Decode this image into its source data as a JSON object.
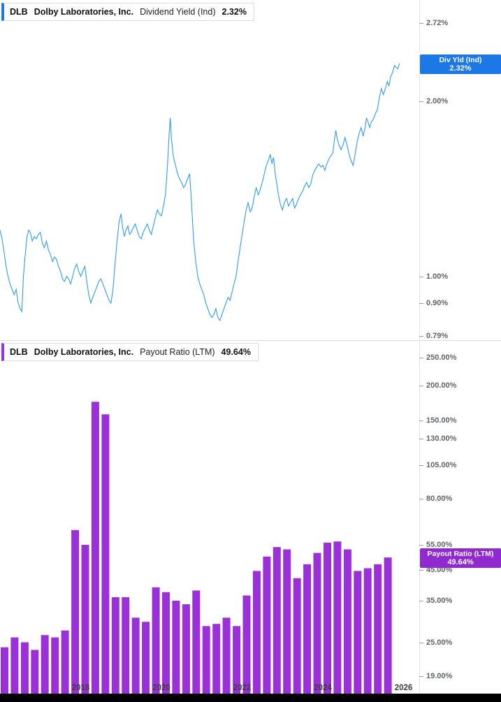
{
  "panels": {
    "yield": {
      "legend": {
        "ticker": "DLB",
        "company": "Dolby Laboratories, Inc.",
        "metric": "Dividend Yield (Ind)",
        "value": "2.32%"
      },
      "badge": {
        "title": "Div Yld (Ind)",
        "value_label": "2.32%",
        "value": 2.32
      }
    },
    "payout": {
      "legend": {
        "ticker": "DLB",
        "company": "Dolby Laboratories, Inc.",
        "metric": "Payout Ratio (LTM)",
        "value": "49.64%"
      },
      "badge": {
        "title": "Payout Ratio (LTM)",
        "value_label": "49.64%",
        "value": 49.64
      }
    }
  },
  "colors": {
    "yield_line": "#2f9cf0",
    "yield_badge": "#1b78e6",
    "payout_bar": "#9b30d9",
    "payout_badge": "#9029d0",
    "axis_text": "#5f6368",
    "divider": "#d8d8d8"
  },
  "x_axis": {
    "year_labels": [
      2018,
      2020,
      2022,
      2024,
      2026
    ],
    "xlim": [
      2016,
      2026.39
    ]
  },
  "chart_data": [
    {
      "type": "line",
      "title": "DLB Dividend Yield (Ind)",
      "unit": "%",
      "scale": "log",
      "color": "#2f9cf0",
      "ylim": [
        0.777,
        2.98
      ],
      "xlim": [
        2016,
        2026.39
      ],
      "yticks": [
        {
          "v": 2.72,
          "label": "2.72%"
        },
        {
          "v": 2.0,
          "label": "2.00%"
        },
        {
          "v": 1.0,
          "label": "1.00%"
        },
        {
          "v": 0.9,
          "label": "0.90%"
        },
        {
          "v": 0.79,
          "label": "0.79%"
        }
      ],
      "points": [
        [
          2016.0,
          1.2
        ],
        [
          2016.05,
          1.16
        ],
        [
          2016.1,
          1.1
        ],
        [
          2016.15,
          1.04
        ],
        [
          2016.2,
          1.0
        ],
        [
          2016.25,
          0.97
        ],
        [
          2016.3,
          0.95
        ],
        [
          2016.35,
          0.93
        ],
        [
          2016.4,
          0.95
        ],
        [
          2016.45,
          0.9
        ],
        [
          2016.5,
          0.88
        ],
        [
          2016.54,
          0.87
        ],
        [
          2016.58,
          1.0
        ],
        [
          2016.62,
          1.08
        ],
        [
          2016.67,
          1.17
        ],
        [
          2016.71,
          1.2
        ],
        [
          2016.75,
          1.19
        ],
        [
          2016.8,
          1.15
        ],
        [
          2016.85,
          1.17
        ],
        [
          2016.9,
          1.16
        ],
        [
          2016.95,
          1.18
        ],
        [
          2017.0,
          1.19
        ],
        [
          2017.05,
          1.14
        ],
        [
          2017.1,
          1.12
        ],
        [
          2017.15,
          1.15
        ],
        [
          2017.2,
          1.11
        ],
        [
          2017.25,
          1.09
        ],
        [
          2017.3,
          1.06
        ],
        [
          2017.35,
          1.08
        ],
        [
          2017.4,
          1.07
        ],
        [
          2017.45,
          1.04
        ],
        [
          2017.5,
          1.02
        ],
        [
          2017.55,
          0.99
        ],
        [
          2017.6,
          0.98
        ],
        [
          2017.65,
          1.0
        ],
        [
          2017.7,
          0.99
        ],
        [
          2017.75,
          0.97
        ],
        [
          2017.8,
          1.0
        ],
        [
          2017.85,
          1.03
        ],
        [
          2017.9,
          1.05
        ],
        [
          2017.95,
          1.02
        ],
        [
          2018.0,
          1.0
        ],
        [
          2018.05,
          1.02
        ],
        [
          2018.1,
          1.04
        ],
        [
          2018.15,
          0.98
        ],
        [
          2018.2,
          0.93
        ],
        [
          2018.25,
          0.9
        ],
        [
          2018.3,
          0.92
        ],
        [
          2018.35,
          0.94
        ],
        [
          2018.4,
          0.96
        ],
        [
          2018.45,
          0.98
        ],
        [
          2018.5,
          0.99
        ],
        [
          2018.55,
          0.97
        ],
        [
          2018.6,
          0.95
        ],
        [
          2018.65,
          0.93
        ],
        [
          2018.7,
          0.91
        ],
        [
          2018.75,
          0.9
        ],
        [
          2018.8,
          0.95
        ],
        [
          2018.85,
          1.05
        ],
        [
          2018.9,
          1.15
        ],
        [
          2018.95,
          1.24
        ],
        [
          2019.0,
          1.28
        ],
        [
          2019.04,
          1.21
        ],
        [
          2019.08,
          1.17
        ],
        [
          2019.12,
          1.2
        ],
        [
          2019.17,
          1.22
        ],
        [
          2019.21,
          1.18
        ],
        [
          2019.25,
          1.19
        ],
        [
          2019.3,
          1.21
        ],
        [
          2019.35,
          1.23
        ],
        [
          2019.4,
          1.2
        ],
        [
          2019.45,
          1.17
        ],
        [
          2019.5,
          1.16
        ],
        [
          2019.55,
          1.19
        ],
        [
          2019.6,
          1.21
        ],
        [
          2019.65,
          1.23
        ],
        [
          2019.7,
          1.2
        ],
        [
          2019.75,
          1.18
        ],
        [
          2019.8,
          1.22
        ],
        [
          2019.85,
          1.26
        ],
        [
          2019.9,
          1.3
        ],
        [
          2019.95,
          1.28
        ],
        [
          2020.0,
          1.27
        ],
        [
          2020.05,
          1.32
        ],
        [
          2020.1,
          1.38
        ],
        [
          2020.15,
          1.55
        ],
        [
          2020.19,
          1.75
        ],
        [
          2020.22,
          1.87
        ],
        [
          2020.25,
          1.72
        ],
        [
          2020.3,
          1.6
        ],
        [
          2020.35,
          1.55
        ],
        [
          2020.4,
          1.5
        ],
        [
          2020.45,
          1.47
        ],
        [
          2020.5,
          1.45
        ],
        [
          2020.55,
          1.42
        ],
        [
          2020.6,
          1.44
        ],
        [
          2020.65,
          1.47
        ],
        [
          2020.7,
          1.5
        ],
        [
          2020.73,
          1.4
        ],
        [
          2020.76,
          1.28
        ],
        [
          2020.8,
          1.15
        ],
        [
          2020.85,
          1.06
        ],
        [
          2020.9,
          1.0
        ],
        [
          2020.95,
          0.97
        ],
        [
          2021.0,
          0.95
        ],
        [
          2021.05,
          0.93
        ],
        [
          2021.1,
          0.9
        ],
        [
          2021.15,
          0.88
        ],
        [
          2021.2,
          0.86
        ],
        [
          2021.25,
          0.85
        ],
        [
          2021.3,
          0.86
        ],
        [
          2021.35,
          0.88
        ],
        [
          2021.4,
          0.85
        ],
        [
          2021.45,
          0.84
        ],
        [
          2021.5,
          0.86
        ],
        [
          2021.55,
          0.88
        ],
        [
          2021.6,
          0.9
        ],
        [
          2021.65,
          0.92
        ],
        [
          2021.7,
          0.91
        ],
        [
          2021.75,
          0.94
        ],
        [
          2021.8,
          0.97
        ],
        [
          2021.85,
          1.0
        ],
        [
          2021.9,
          1.06
        ],
        [
          2021.95,
          1.12
        ],
        [
          2022.0,
          1.18
        ],
        [
          2022.05,
          1.24
        ],
        [
          2022.1,
          1.3
        ],
        [
          2022.15,
          1.34
        ],
        [
          2022.2,
          1.29
        ],
        [
          2022.25,
          1.31
        ],
        [
          2022.3,
          1.37
        ],
        [
          2022.35,
          1.42
        ],
        [
          2022.4,
          1.38
        ],
        [
          2022.45,
          1.41
        ],
        [
          2022.5,
          1.45
        ],
        [
          2022.55,
          1.5
        ],
        [
          2022.6,
          1.55
        ],
        [
          2022.65,
          1.58
        ],
        [
          2022.7,
          1.62
        ],
        [
          2022.74,
          1.56
        ],
        [
          2022.78,
          1.6
        ],
        [
          2022.82,
          1.5
        ],
        [
          2022.86,
          1.44
        ],
        [
          2022.9,
          1.38
        ],
        [
          2022.95,
          1.33
        ],
        [
          2023.0,
          1.3
        ],
        [
          2023.05,
          1.34
        ],
        [
          2023.1,
          1.36
        ],
        [
          2023.15,
          1.32
        ],
        [
          2023.2,
          1.34
        ],
        [
          2023.25,
          1.36
        ],
        [
          2023.3,
          1.31
        ],
        [
          2023.35,
          1.33
        ],
        [
          2023.4,
          1.36
        ],
        [
          2023.45,
          1.38
        ],
        [
          2023.5,
          1.4
        ],
        [
          2023.55,
          1.43
        ],
        [
          2023.6,
          1.45
        ],
        [
          2023.65,
          1.42
        ],
        [
          2023.7,
          1.44
        ],
        [
          2023.75,
          1.49
        ],
        [
          2023.8,
          1.52
        ],
        [
          2023.85,
          1.54
        ],
        [
          2023.9,
          1.56
        ],
        [
          2023.95,
          1.54
        ],
        [
          2024.0,
          1.55
        ],
        [
          2024.05,
          1.52
        ],
        [
          2024.1,
          1.56
        ],
        [
          2024.15,
          1.59
        ],
        [
          2024.2,
          1.61
        ],
        [
          2024.25,
          1.63
        ],
        [
          2024.28,
          1.7
        ],
        [
          2024.32,
          1.78
        ],
        [
          2024.36,
          1.72
        ],
        [
          2024.4,
          1.68
        ],
        [
          2024.45,
          1.65
        ],
        [
          2024.5,
          1.68
        ],
        [
          2024.55,
          1.73
        ],
        [
          2024.6,
          1.68
        ],
        [
          2024.65,
          1.62
        ],
        [
          2024.7,
          1.58
        ],
        [
          2024.75,
          1.55
        ],
        [
          2024.8,
          1.62
        ],
        [
          2024.85,
          1.7
        ],
        [
          2024.9,
          1.76
        ],
        [
          2024.95,
          1.8
        ],
        [
          2025.0,
          1.74
        ],
        [
          2025.05,
          1.8
        ],
        [
          2025.08,
          1.87
        ],
        [
          2025.12,
          1.84
        ],
        [
          2025.16,
          1.8
        ],
        [
          2025.2,
          1.84
        ],
        [
          2025.25,
          1.86
        ],
        [
          2025.3,
          1.9
        ],
        [
          2025.35,
          1.93
        ],
        [
          2025.4,
          2.02
        ],
        [
          2025.45,
          2.1
        ],
        [
          2025.5,
          2.05
        ],
        [
          2025.55,
          2.1
        ],
        [
          2025.6,
          2.16
        ],
        [
          2025.64,
          2.12
        ],
        [
          2025.68,
          2.2
        ],
        [
          2025.73,
          2.24
        ],
        [
          2025.82,
          2.28
        ],
        [
          2025.9,
          2.32
        ]
      ]
    },
    {
      "type": "bar",
      "title": "DLB Payout Ratio (LTM)",
      "unit": "%",
      "scale": "log",
      "color": "#9b30d9",
      "ylim": [
        16.5,
        288
      ],
      "xlim": [
        2016,
        2026.39
      ],
      "yticks": [
        {
          "v": 250,
          "label": "250.00%"
        },
        {
          "v": 200,
          "label": "200.00%"
        },
        {
          "v": 150,
          "label": "150.00%"
        },
        {
          "v": 130,
          "label": "130.00%"
        },
        {
          "v": 105,
          "label": "105.00%"
        },
        {
          "v": 80,
          "label": "80.00%"
        },
        {
          "v": 55,
          "label": "55.00%"
        },
        {
          "v": 45,
          "label": "45.00%"
        },
        {
          "v": 35,
          "label": "35.00%"
        },
        {
          "v": 25,
          "label": "25.00%"
        },
        {
          "v": 19,
          "label": "19.00%"
        }
      ],
      "quarter_start": 2016.0,
      "quarter_step": 0.25,
      "values": [
        24,
        26,
        25,
        23.5,
        26.5,
        26,
        27.5,
        62,
        55,
        175,
        158,
        36,
        36,
        30.5,
        29.5,
        39,
        37.5,
        35,
        34,
        38,
        28.5,
        29,
        30.5,
        28.5,
        36.5,
        44.5,
        50,
        54,
        53,
        42,
        47,
        51.5,
        56,
        56.5,
        53,
        44.5,
        45.5,
        47,
        49.64
      ]
    }
  ]
}
